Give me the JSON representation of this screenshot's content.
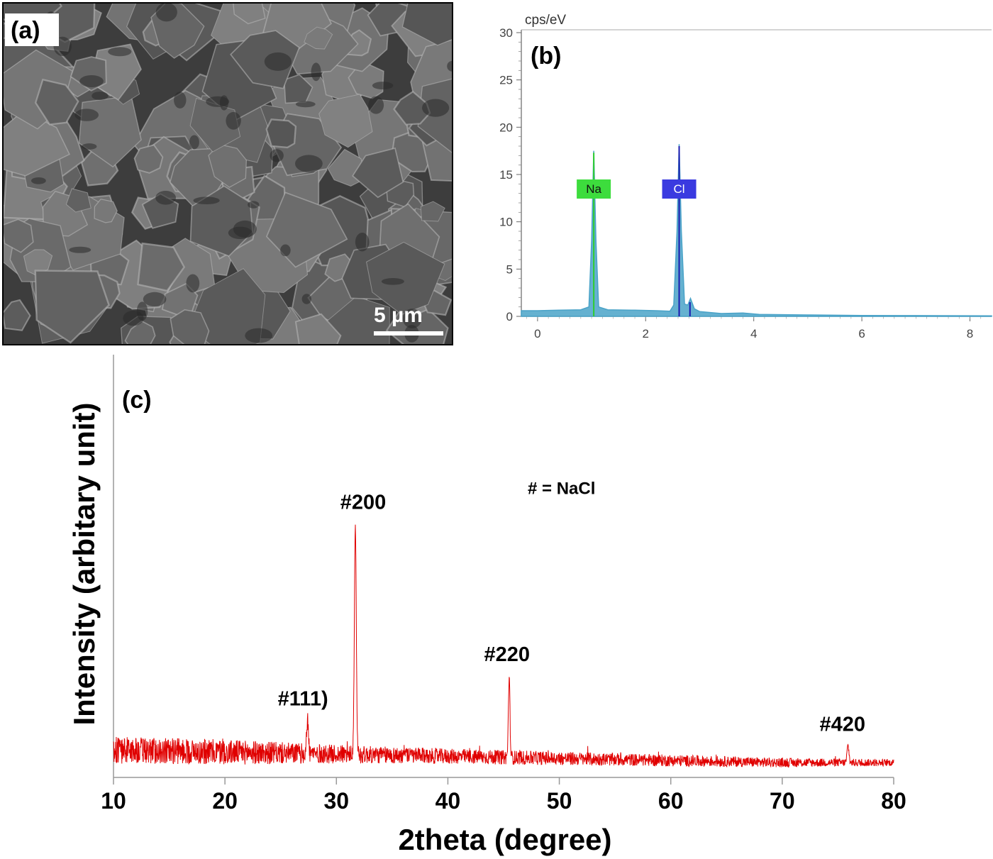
{
  "panel_a": {
    "label": "(a)",
    "scale_bar_label": "5 µm",
    "colors": {
      "background": "#5a5a5a",
      "grain": "#6e6e6e",
      "edge": "#b9b9b9",
      "shadow": "#2a2a2a"
    }
  },
  "chart_data": [
    {
      "panel": "b",
      "type": "line",
      "label": "(b)",
      "ylabel": "cps/eV",
      "xlim": [
        -0.3,
        8.4
      ],
      "ylim": [
        0,
        30
      ],
      "xticks": [
        0,
        2,
        4,
        6,
        8
      ],
      "yticks": [
        0,
        5,
        10,
        15,
        20,
        25,
        30
      ],
      "grid": false,
      "series": [
        {
          "color": "#4aa3c8",
          "points": [
            [
              -0.3,
              0.6
            ],
            [
              0.0,
              0.6
            ],
            [
              0.4,
              0.65
            ],
            [
              0.8,
              0.7
            ],
            [
              0.95,
              1.0
            ],
            [
              1.0,
              8.0
            ],
            [
              1.04,
              17.5
            ],
            [
              1.08,
              8.0
            ],
            [
              1.13,
              1.0
            ],
            [
              1.3,
              0.7
            ],
            [
              1.8,
              0.65
            ],
            [
              2.2,
              0.6
            ],
            [
              2.45,
              0.55
            ],
            [
              2.52,
              1.2
            ],
            [
              2.58,
              9.0
            ],
            [
              2.62,
              18.2
            ],
            [
              2.66,
              9.0
            ],
            [
              2.72,
              1.3
            ],
            [
              2.78,
              1.2
            ],
            [
              2.83,
              1.9
            ],
            [
              2.9,
              0.8
            ],
            [
              3.0,
              0.5
            ],
            [
              3.4,
              0.3
            ],
            [
              3.8,
              0.35
            ],
            [
              4.1,
              0.2
            ],
            [
              5.0,
              0.15
            ],
            [
              6.0,
              0.1
            ],
            [
              7.0,
              0.08
            ],
            [
              8.4,
              0.05
            ]
          ]
        }
      ],
      "element_labels": [
        {
          "text": "Na",
          "x": 1.04,
          "y": 13.5,
          "color": "#3ddc3d"
        },
        {
          "text": "Cl",
          "x": 2.62,
          "y": 13.5,
          "color": "#3a3ae0"
        }
      ],
      "element_lines": [
        {
          "x": 1.04,
          "height": 17.3,
          "color": "#2ecc2e"
        },
        {
          "x": 2.62,
          "height": 18.0,
          "color": "#1a1ab0"
        },
        {
          "x": 2.82,
          "height": 1.5,
          "color": "#1a1ab0"
        }
      ]
    },
    {
      "panel": "c",
      "type": "line",
      "label": "(c)",
      "xlabel": "2theta (degree)",
      "ylabel": "Intensity (arbitary unit)",
      "xlim": [
        10,
        80
      ],
      "xticks": [
        10,
        20,
        30,
        40,
        50,
        60,
        70,
        80
      ],
      "ylim": [
        0,
        100
      ],
      "grid": false,
      "series": [
        {
          "color": "#e00000",
          "baseline": [
            [
              10,
              6.5
            ],
            [
              20,
              6.0
            ],
            [
              30,
              5.5
            ],
            [
              40,
              5.0
            ],
            [
              50,
              4.5
            ],
            [
              60,
              4.0
            ],
            [
              70,
              3.5
            ],
            [
              80,
              3.5
            ]
          ],
          "noise_amplitude": [
            [
              10,
              3.2
            ],
            [
              20,
              3.0
            ],
            [
              30,
              2.2
            ],
            [
              40,
              1.8
            ],
            [
              50,
              1.6
            ],
            [
              60,
              1.4
            ],
            [
              70,
              1.1
            ],
            [
              80,
              0.8
            ]
          ],
          "peaks": [
            {
              "x": 27.4,
              "height": 8,
              "width": 0.12
            },
            {
              "x": 31.7,
              "height": 54,
              "width": 0.12
            },
            {
              "x": 45.5,
              "height": 19,
              "width": 0.1
            },
            {
              "x": 75.9,
              "height": 4,
              "width": 0.12
            }
          ]
        }
      ],
      "annotations": [
        {
          "text": "#111)",
          "x": 27.0,
          "y": 17.0
        },
        {
          "text": "#200",
          "x": 32.4,
          "y": 63.5
        },
        {
          "text": "#220",
          "x": 45.3,
          "y": 27.5
        },
        {
          "text": "#420",
          "x": 75.4,
          "y": 11.0
        },
        {
          "text": "# = NaCl",
          "x": 50.2,
          "y": 67.0
        }
      ]
    }
  ]
}
